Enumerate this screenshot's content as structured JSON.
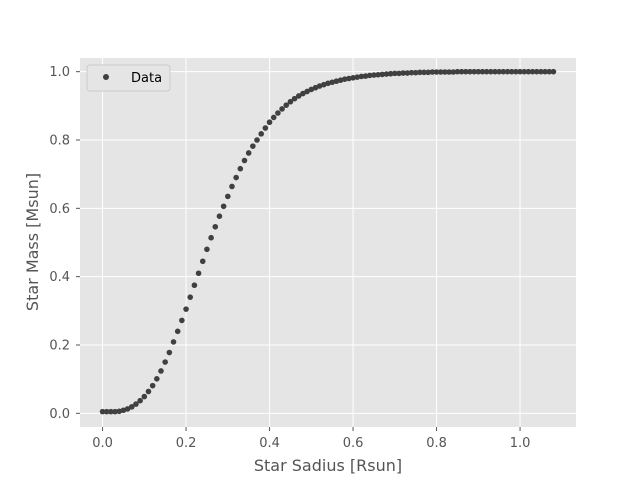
{
  "chart_data": {
    "type": "scatter",
    "title": "",
    "xlabel": "Star Sadius [Rsun]",
    "ylabel": "Star Mass [Msun]",
    "xlim": [
      -0.054,
      1.134
    ],
    "ylim": [
      -0.04,
      1.04
    ],
    "xticks": [
      0.0,
      0.2,
      0.4,
      0.6,
      0.8,
      1.0
    ],
    "yticks": [
      0.0,
      0.2,
      0.4,
      0.6,
      0.8,
      1.0
    ],
    "xtick_labels": [
      "0.0",
      "0.2",
      "0.4",
      "0.6",
      "0.8",
      "1.0"
    ],
    "ytick_labels": [
      "0.0",
      "0.2",
      "0.4",
      "0.6",
      "0.8",
      "1.0"
    ],
    "grid": true,
    "legend": {
      "position": "top-left",
      "entries": [
        "Data"
      ]
    },
    "series": [
      {
        "name": "Data",
        "color": "#404040",
        "x": [
          0.0,
          0.01,
          0.02,
          0.03,
          0.04,
          0.05,
          0.06,
          0.07,
          0.08,
          0.09,
          0.1,
          0.11,
          0.12,
          0.13,
          0.14,
          0.15,
          0.16,
          0.17,
          0.18,
          0.19,
          0.2,
          0.21,
          0.22,
          0.23,
          0.24,
          0.25,
          0.26,
          0.27,
          0.28,
          0.29,
          0.3,
          0.31,
          0.32,
          0.33,
          0.34,
          0.35,
          0.36,
          0.37,
          0.38,
          0.39,
          0.4,
          0.41,
          0.42,
          0.43,
          0.44,
          0.45,
          0.46,
          0.47,
          0.48,
          0.49,
          0.5,
          0.51,
          0.52,
          0.53,
          0.54,
          0.55,
          0.56,
          0.57,
          0.58,
          0.59,
          0.6,
          0.61,
          0.62,
          0.63,
          0.64,
          0.65,
          0.66,
          0.67,
          0.68,
          0.69,
          0.7,
          0.71,
          0.72,
          0.73,
          0.74,
          0.75,
          0.76,
          0.77,
          0.78,
          0.79,
          0.8,
          0.81,
          0.82,
          0.83,
          0.84,
          0.85,
          0.86,
          0.87,
          0.88,
          0.89,
          0.9,
          0.91,
          0.92,
          0.93,
          0.94,
          0.95,
          0.96,
          0.97,
          0.98,
          0.99,
          1.0,
          1.01,
          1.02,
          1.03,
          1.04,
          1.05,
          1.06,
          1.07,
          1.08
        ],
        "y": [
          0.005,
          0.005,
          0.005,
          0.005,
          0.006,
          0.009,
          0.013,
          0.019,
          0.027,
          0.037,
          0.049,
          0.064,
          0.081,
          0.101,
          0.124,
          0.15,
          0.178,
          0.209,
          0.24,
          0.272,
          0.305,
          0.34,
          0.375,
          0.41,
          0.445,
          0.48,
          0.514,
          0.546,
          0.577,
          0.606,
          0.635,
          0.664,
          0.69,
          0.716,
          0.74,
          0.762,
          0.782,
          0.8,
          0.818,
          0.835,
          0.852,
          0.866,
          0.879,
          0.891,
          0.902,
          0.912,
          0.921,
          0.929,
          0.936,
          0.942,
          0.948,
          0.953,
          0.958,
          0.962,
          0.966,
          0.969,
          0.972,
          0.975,
          0.978,
          0.98,
          0.982,
          0.984,
          0.986,
          0.987,
          0.989,
          0.99,
          0.991,
          0.992,
          0.993,
          0.994,
          0.995,
          0.995,
          0.996,
          0.996,
          0.997,
          0.997,
          0.998,
          0.998,
          0.998,
          0.999,
          0.999,
          0.999,
          0.999,
          0.999,
          0.999,
          1.0,
          1.0,
          1.0,
          1.0,
          1.0,
          1.0,
          1.0,
          1.0,
          1.0,
          1.0,
          1.0,
          1.0,
          1.0,
          1.0,
          1.0,
          1.0,
          1.0,
          1.0,
          1.0,
          1.0,
          1.0,
          1.0,
          1.0,
          1.0
        ]
      }
    ]
  }
}
